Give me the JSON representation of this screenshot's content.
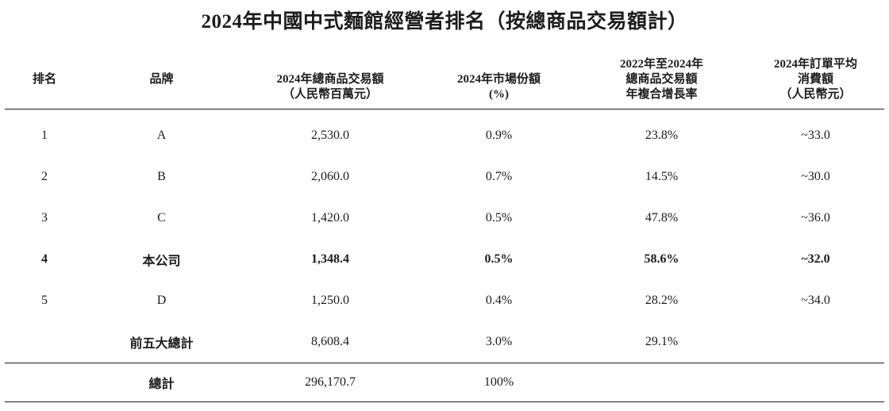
{
  "title": "2024年中國中式麵館經營者排名（按總商品交易額計）",
  "colors": {
    "background": "#ffffff",
    "text": "#1c1c1c",
    "rule": "#1c1c1c"
  },
  "table": {
    "headers": {
      "rank": "排名",
      "brand": "品牌",
      "gmv_l1": "2024年總商品交易額",
      "gmv_l2": "（人民幣百萬元）",
      "share_l1": "2024年市場份額",
      "share_l2": "(%)",
      "cagr_l1": "2022年至2024年",
      "cagr_l2": "總商品交易額",
      "cagr_l3": "年複合增長率",
      "aov_l1": "2024年訂單平均",
      "aov_l2": "消費額",
      "aov_l3": "（人民幣元）"
    },
    "rows": [
      {
        "rank": "1",
        "brand": "A",
        "gmv": "2,530.0",
        "share": "0.9%",
        "cagr": "23.8%",
        "aov": "~33.0"
      },
      {
        "rank": "2",
        "brand": "B",
        "gmv": "2,060.0",
        "share": "0.7%",
        "cagr": "14.5%",
        "aov": "~30.0"
      },
      {
        "rank": "3",
        "brand": "C",
        "gmv": "1,420.0",
        "share": "0.5%",
        "cagr": "47.8%",
        "aov": "~36.0"
      },
      {
        "rank": "4",
        "brand": "本公司",
        "gmv": "1,348.4",
        "share": "0.5%",
        "cagr": "58.6%",
        "aov": "~32.0"
      },
      {
        "rank": "5",
        "brand": "D",
        "gmv": "1,250.0",
        "share": "0.4%",
        "cagr": "28.2%",
        "aov": "~34.0"
      }
    ],
    "subtotal": {
      "label": "前五大總計",
      "gmv": "8,608.4",
      "share": "3.0%",
      "cagr": "29.1%",
      "aov": ""
    },
    "total": {
      "label": "總計",
      "gmv": "296,170.7",
      "share": "100%",
      "cagr": "",
      "aov": ""
    }
  }
}
